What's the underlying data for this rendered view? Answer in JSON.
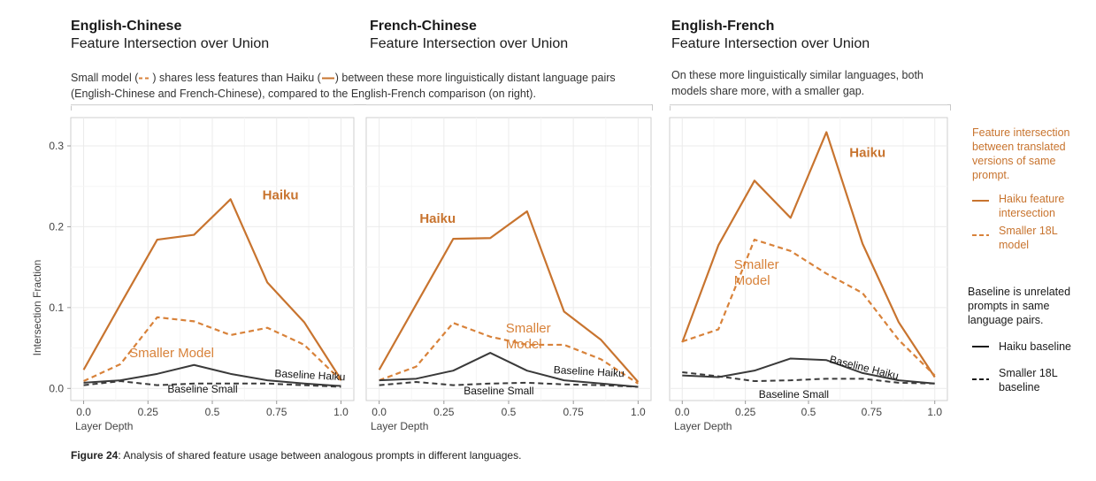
{
  "panel_titles": [
    {
      "bold": "English-Chinese",
      "sub": "Feature Intersection over Union"
    },
    {
      "bold": "French-Chinese",
      "sub": "Feature Intersection over Union"
    },
    {
      "bold": "English-French",
      "sub": "Feature Intersection over Union"
    }
  ],
  "description_left": {
    "p1": "Small model (",
    "p2": ") shares less features than Haiku (",
    "p3": ") between these more linguistically distant language pairs (English-Chinese and French-Chinese), compared to the English-French comparison (on right)."
  },
  "description_right": "On these more linguistically similar languages, both models share more, with a smaller gap.",
  "legend": {
    "header": "Feature intersection between translated versions of same prompt.",
    "haiku": "Haiku feature intersection",
    "small": "Smaller 18L model",
    "baseline_header": "Baseline is unrelated prompts in same language pairs.",
    "haiku_baseline": "Haiku baseline",
    "small_baseline": "Smaller 18L baseline"
  },
  "caption": {
    "bold": "Figure 24",
    "rest": ": Analysis of shared feature usage between analogous prompts in different languages."
  },
  "colors": {
    "haiku": "#c8742f",
    "small": "#d8823a",
    "baseline": "#3a3a3a"
  },
  "chart_data": [
    {
      "type": "line",
      "title": "English-Chinese",
      "xlabel": "Layer Depth",
      "ylabel": "Intersection Fraction",
      "x": [
        0,
        0.143,
        0.286,
        0.429,
        0.571,
        0.714,
        0.857,
        1.0
      ],
      "xlim": [
        -0.05,
        1.05
      ],
      "ylim": [
        -0.015,
        0.335
      ],
      "xticks": [
        "0.0",
        "0.25",
        "0.5",
        "0.75",
        "1.0"
      ],
      "yticks": [
        "0.0",
        "0.1",
        "0.2",
        "0.3"
      ],
      "grid": true,
      "series": [
        {
          "name": "Haiku",
          "style": "solid",
          "kind": "haiku",
          "values": [
            0.023,
            0.104,
            0.184,
            0.19,
            0.234,
            0.131,
            0.082,
            0.011
          ]
        },
        {
          "name": "Smaller Model",
          "style": "dashed",
          "kind": "small",
          "values": [
            0.009,
            0.03,
            0.088,
            0.083,
            0.066,
            0.075,
            0.054,
            0.01
          ]
        },
        {
          "name": "Baseline Haiku",
          "style": "solid",
          "kind": "baseline",
          "values": [
            0.007,
            0.01,
            0.018,
            0.029,
            0.018,
            0.01,
            0.006,
            0.003
          ]
        },
        {
          "name": "Baseline Small",
          "style": "dashed",
          "kind": "baseline",
          "values": [
            0.004,
            0.009,
            0.004,
            0.006,
            0.006,
            0.006,
            0.004,
            0.002
          ]
        }
      ]
    },
    {
      "type": "line",
      "title": "French-Chinese",
      "xlabel": "Layer Depth",
      "ylabel": "",
      "x": [
        0,
        0.143,
        0.286,
        0.429,
        0.571,
        0.714,
        0.857,
        1.0
      ],
      "xlim": [
        -0.05,
        1.05
      ],
      "ylim": [
        -0.015,
        0.335
      ],
      "xticks": [
        "0.0",
        "0.25",
        "0.5",
        "0.75",
        "1.0"
      ],
      "yticks": [],
      "grid": true,
      "series": [
        {
          "name": "Haiku",
          "style": "solid",
          "kind": "haiku",
          "values": [
            0.023,
            0.104,
            0.185,
            0.186,
            0.219,
            0.095,
            0.06,
            0.008
          ]
        },
        {
          "name": "Smaller Model",
          "style": "dashed",
          "kind": "small",
          "values": [
            0.01,
            0.027,
            0.081,
            0.064,
            0.054,
            0.054,
            0.036,
            0.006
          ]
        },
        {
          "name": "Baseline Haiku",
          "style": "solid",
          "kind": "baseline",
          "values": [
            0.01,
            0.012,
            0.022,
            0.044,
            0.022,
            0.01,
            0.006,
            0.002
          ]
        },
        {
          "name": "Baseline Small",
          "style": "dashed",
          "kind": "baseline",
          "values": [
            0.004,
            0.008,
            0.004,
            0.006,
            0.007,
            0.005,
            0.004,
            0.002
          ]
        }
      ]
    },
    {
      "type": "line",
      "title": "English-French",
      "xlabel": "Layer Depth",
      "ylabel": "",
      "x": [
        0,
        0.143,
        0.286,
        0.429,
        0.571,
        0.714,
        0.857,
        1.0
      ],
      "xlim": [
        -0.05,
        1.05
      ],
      "ylim": [
        -0.015,
        0.335
      ],
      "xticks": [
        "0.0",
        "0.25",
        "0.5",
        "0.75",
        "1.0"
      ],
      "yticks": [],
      "grid": true,
      "series": [
        {
          "name": "Haiku",
          "style": "solid",
          "kind": "haiku",
          "values": [
            0.057,
            0.177,
            0.257,
            0.211,
            0.317,
            0.179,
            0.082,
            0.014
          ]
        },
        {
          "name": "Smaller Model",
          "style": "dashed",
          "kind": "small",
          "values": [
            0.058,
            0.073,
            0.184,
            0.17,
            0.142,
            0.118,
            0.06,
            0.016
          ]
        },
        {
          "name": "Baseline Haiku",
          "style": "solid",
          "kind": "baseline",
          "values": [
            0.016,
            0.014,
            0.022,
            0.037,
            0.035,
            0.019,
            0.01,
            0.006
          ]
        },
        {
          "name": "Baseline Small",
          "style": "dashed",
          "kind": "baseline",
          "values": [
            0.02,
            0.015,
            0.009,
            0.01,
            0.012,
            0.012,
            0.007,
            0.006
          ]
        }
      ]
    }
  ]
}
